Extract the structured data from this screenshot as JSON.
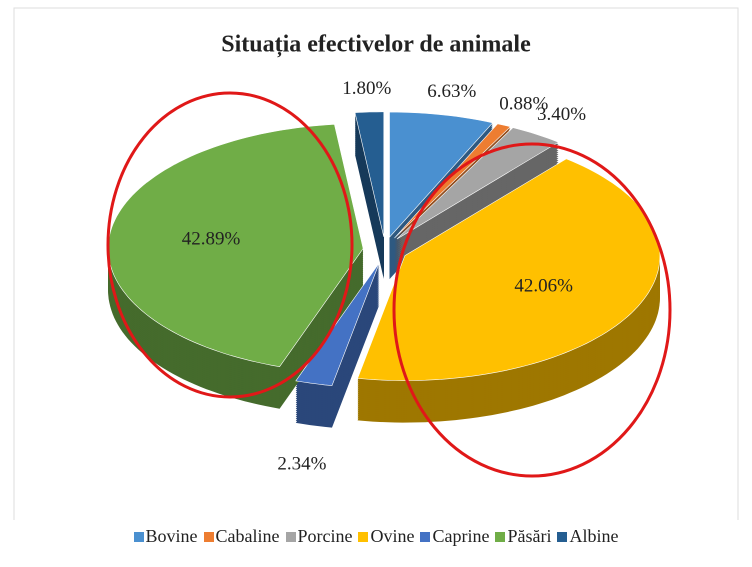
{
  "chart_data": {
    "type": "pie",
    "title": "Situația efectivelor de animale",
    "categories": [
      "Bovine",
      "Cabaline",
      "Porcine",
      "Ovine",
      "Caprine",
      "Păsări",
      "Albine"
    ],
    "values": [
      6.63,
      0.88,
      3.4,
      42.06,
      2.34,
      42.89,
      1.8
    ],
    "value_labels": [
      "6.63%",
      "0.88%",
      "3.40%",
      "42.06%",
      "2.34%",
      "42.89%",
      "1.80%"
    ],
    "colors": [
      "#4a90d0",
      "#ed7d31",
      "#a5a5a5",
      "#ffc000",
      "#4472c4",
      "#70ad47",
      "#255e91"
    ],
    "legend": "bottom"
  }
}
